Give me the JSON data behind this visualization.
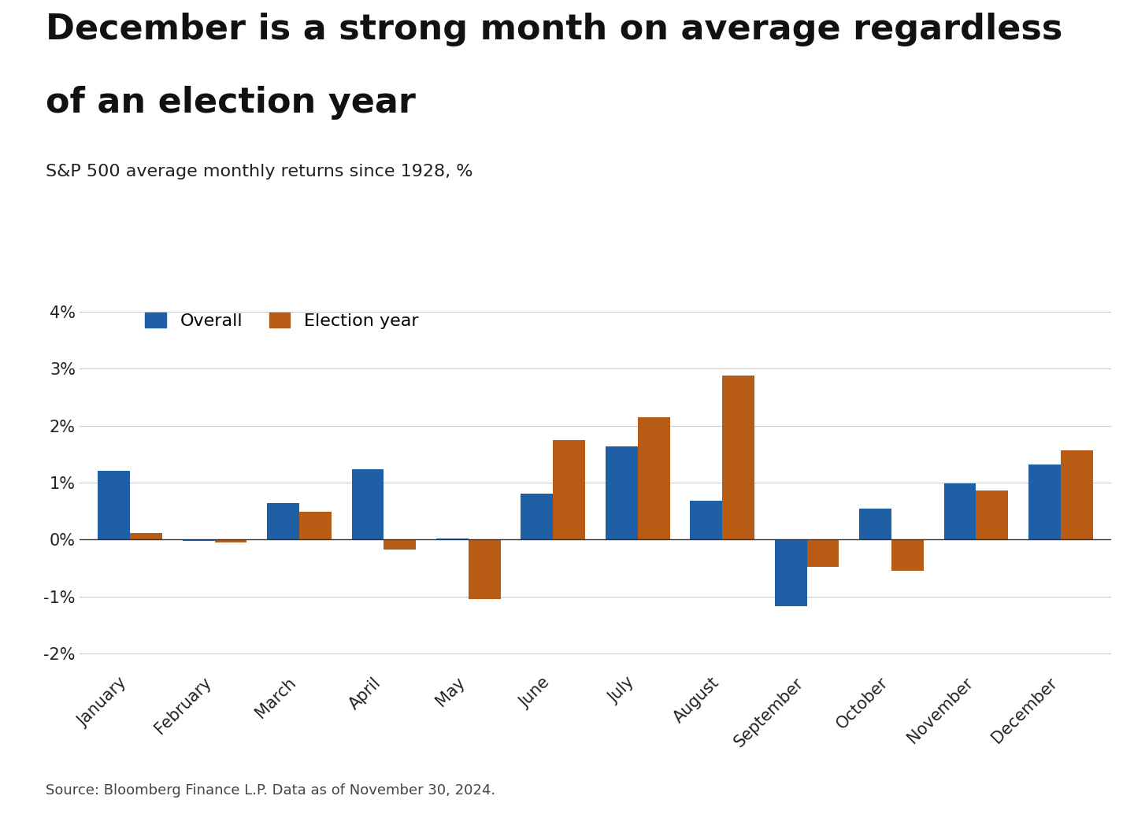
{
  "title_line1": "December is a strong month on average regardless",
  "title_line2": "of an election year",
  "subtitle": "S&P 500 average monthly returns since 1928, %",
  "source": "Source: Bloomberg Finance L.P. Data as of November 30, 2024.",
  "months": [
    "January",
    "February",
    "March",
    "April",
    "May",
    "June",
    "July",
    "August",
    "September",
    "October",
    "November",
    "December"
  ],
  "overall": [
    1.21,
    -0.02,
    0.64,
    1.24,
    0.02,
    0.8,
    1.64,
    0.68,
    -1.17,
    0.55,
    0.99,
    1.32
  ],
  "election": [
    0.11,
    -0.05,
    0.49,
    -0.18,
    -1.05,
    1.75,
    2.14,
    2.88,
    -0.48,
    -0.55,
    0.86,
    1.57
  ],
  "overall_color": "#1F5FA6",
  "election_color": "#B85C15",
  "background_color": "#FFFFFF",
  "ylim": [
    -2.3,
    4.3
  ],
  "yticks": [
    -2,
    -1,
    0,
    1,
    2,
    3,
    4
  ],
  "ytick_labels": [
    "-2%",
    "-1%",
    "0%",
    "1%",
    "2%",
    "3%",
    "4%"
  ],
  "bar_width": 0.38,
  "title_fontsize": 32,
  "subtitle_fontsize": 16,
  "tick_fontsize": 15,
  "legend_fontsize": 16,
  "source_fontsize": 13
}
